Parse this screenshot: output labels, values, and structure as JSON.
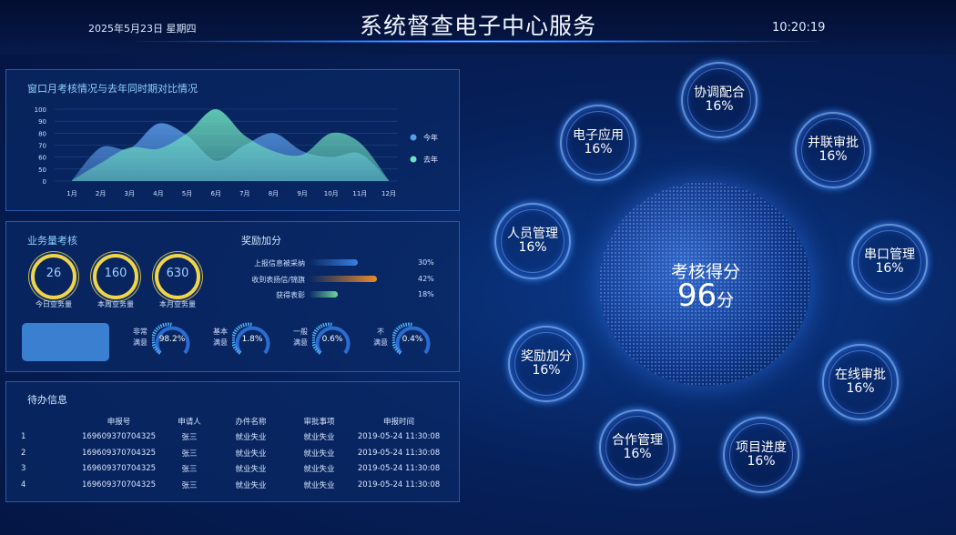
{
  "header": {
    "date": "2025年5月23日  星期四",
    "title": "系统督查电子中心服务",
    "time": "10:20:19"
  },
  "chart_panel": {
    "title": "窗口月考核情况与去年同时期对比情况"
  },
  "chart_data": {
    "type": "area",
    "title": "窗口月考核情况与去年同时期对比情况",
    "categories": [
      "1月",
      "2月",
      "3月",
      "4月",
      "5月",
      "6月",
      "7月",
      "8月",
      "9月",
      "10月",
      "11月",
      "12月"
    ],
    "y_ticks": [
      "100",
      "90",
      "80",
      "70",
      "60",
      "50",
      "0"
    ],
    "series": [
      {
        "name": "今年",
        "color": "#5a9ce8",
        "values": [
          3,
          68,
          67,
          88,
          78,
          57,
          70,
          80,
          65,
          60,
          63,
          3
        ]
      },
      {
        "name": "去年",
        "color": "#6fe0c0",
        "values": [
          3,
          55,
          68,
          67,
          80,
          100,
          78,
          65,
          62,
          80,
          72,
          3
        ]
      }
    ],
    "legend": "right",
    "grid": true
  },
  "business": {
    "title": "业务量考核",
    "rings": [
      {
        "value": "26",
        "label": "今日业务量"
      },
      {
        "value": "160",
        "label": "本周业务量"
      },
      {
        "value": "630",
        "label": "本月业务量"
      }
    ]
  },
  "reward": {
    "title": "奖励加分",
    "items": [
      {
        "label": "上报信息被采纳",
        "pct": "30%",
        "value": 30,
        "color": "#3a7fe0"
      },
      {
        "label": "收到表扬信/锦旗",
        "pct": "42%",
        "value": 42,
        "color": "#e88a2a"
      },
      {
        "label": "获得表彰",
        "pct": "18%",
        "value": 18,
        "color": "#6ed79a"
      }
    ]
  },
  "satisfaction": [
    {
      "l1": "非常",
      "l2": "满意",
      "value": "98.2%"
    },
    {
      "l1": "基本",
      "l2": "满意",
      "value": "1.8%"
    },
    {
      "l1": "一般",
      "l2": "满意",
      "value": "0.6%"
    },
    {
      "l1": "不",
      "l2": "满意",
      "value": "0.4%"
    }
  ],
  "todo": {
    "title": "待办信息",
    "headers": [
      "",
      "申报号",
      "申请人",
      "办件名称",
      "审批事项",
      "申报时间"
    ],
    "rows": [
      [
        "1",
        "169609370704325",
        "张三",
        "就业失业",
        "就业失业",
        "2019-05-24  11:30:08"
      ],
      [
        "2",
        "169609370704325",
        "张三",
        "就业失业",
        "就业失业",
        "2019-05-24  11:30:08"
      ],
      [
        "3",
        "169609370704325",
        "张三",
        "就业失业",
        "就业失业",
        "2019-05-24  11:30:08"
      ],
      [
        "4",
        "169609370704325",
        "张三",
        "就业失业",
        "就业失业",
        "2019-05-24  11:30:08"
      ]
    ]
  },
  "center": {
    "label": "考核得分",
    "score": "96",
    "unit": "分"
  },
  "nodes": [
    {
      "name": "电子应用",
      "pct": "16%"
    },
    {
      "name": "协调配合",
      "pct": "16%"
    },
    {
      "name": "并联审批",
      "pct": "16%"
    },
    {
      "name": "人员管理",
      "pct": "16%"
    },
    {
      "name": "串口管理",
      "pct": "16%"
    },
    {
      "name": "奖励加分",
      "pct": "16%"
    },
    {
      "name": "在线审批",
      "pct": "16%"
    },
    {
      "name": "合作管理",
      "pct": "16%"
    },
    {
      "name": "项目进度",
      "pct": "16%"
    }
  ]
}
